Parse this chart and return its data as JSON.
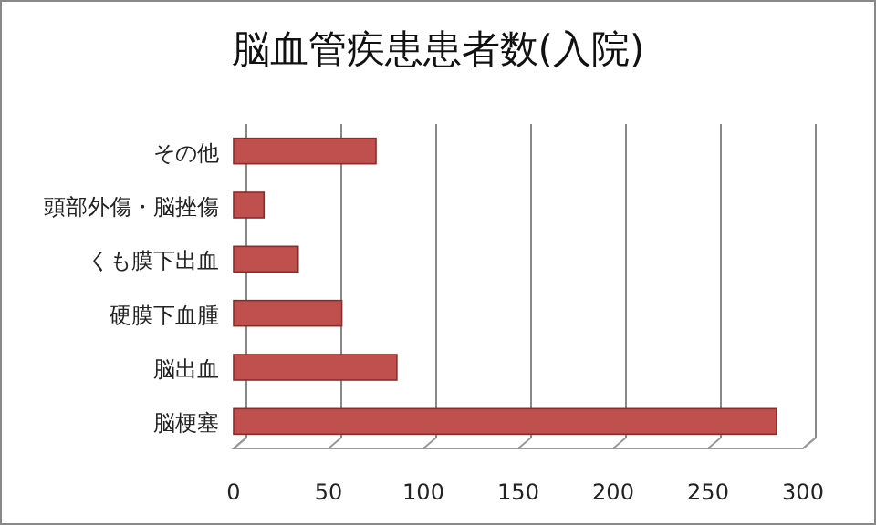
{
  "chart_data": {
    "type": "bar",
    "orientation": "horizontal",
    "title": "脳血管疾患患者数(入院)",
    "categories": [
      "その他",
      "頭部外傷・脳挫傷",
      "くも膜下出血",
      "硬膜下血腫",
      "脳出血",
      "脳梗塞"
    ],
    "values": [
      75,
      16,
      34,
      57,
      86,
      286
    ],
    "color": "#c0504d",
    "xlim": [
      0,
      300
    ],
    "xticks": [
      0,
      50,
      100,
      150,
      200,
      250,
      300
    ],
    "grid": "x"
  }
}
